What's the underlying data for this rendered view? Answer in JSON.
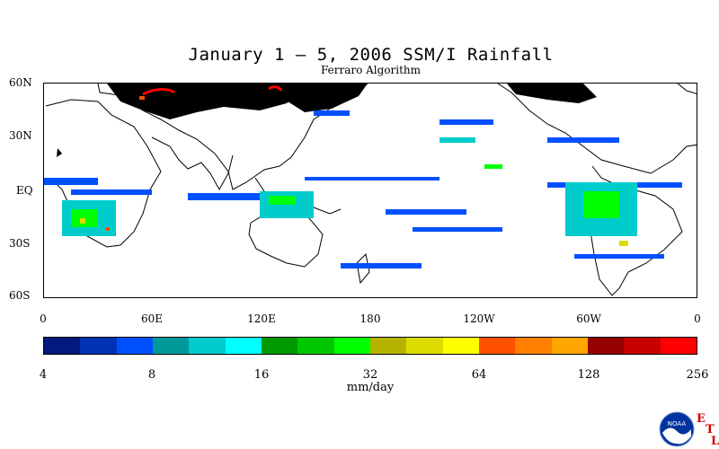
{
  "title": "January 1 – 5, 2006 SSM/I Rainfall",
  "subtitle": "Ferraro Algorithm",
  "lat_labels": [
    "60N",
    "30N",
    "EQ",
    "30S",
    "60S"
  ],
  "lon_labels": [
    "0",
    "60E",
    "120E",
    "180",
    "120W",
    "60W",
    "0"
  ],
  "colorbar": {
    "colors": [
      "#001a80",
      "#0033b3",
      "#0050ff",
      "#00999a",
      "#00cccc",
      "#00ffff",
      "#009900",
      "#00c800",
      "#00ff00",
      "#b4b400",
      "#dcdc00",
      "#ffff00",
      "#ff5000",
      "#ff8000",
      "#ffa500",
      "#960000",
      "#c80000",
      "#ff0000"
    ],
    "tick_labels": [
      "4",
      "8",
      "16",
      "32",
      "64",
      "128",
      "256"
    ],
    "units": "mm/day"
  },
  "logo": {
    "name": "NOAA",
    "letters": [
      "E",
      "T",
      "L"
    ]
  }
}
